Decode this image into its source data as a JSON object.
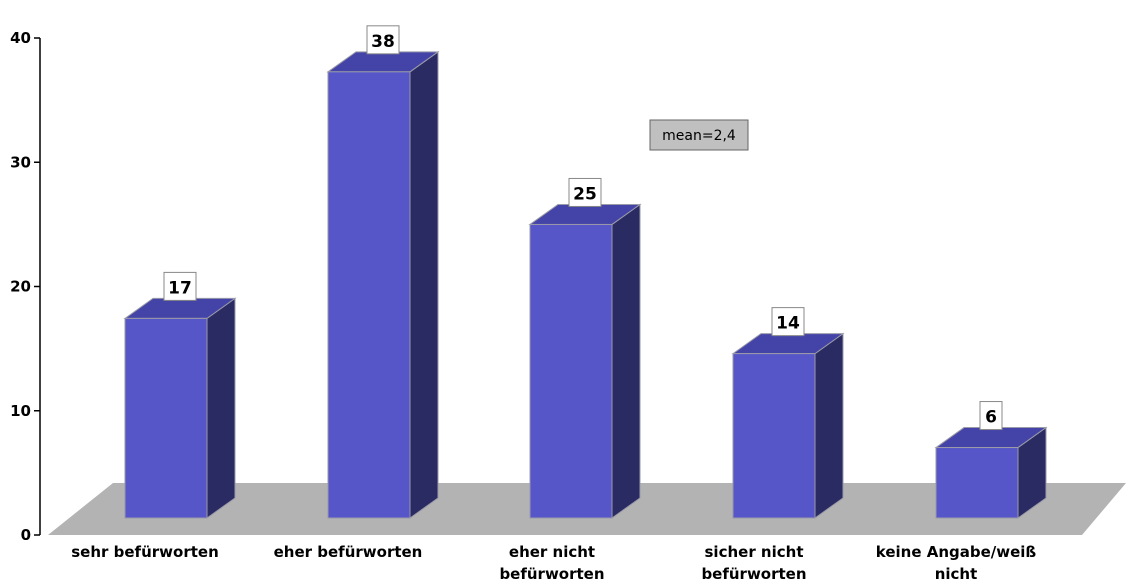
{
  "chart_data": {
    "type": "bar",
    "categories": [
      [
        "sehr befürworten"
      ],
      [
        "eher befürworten"
      ],
      [
        "eher nicht",
        "befürworten"
      ],
      [
        "sicher nicht",
        "befürworten"
      ],
      [
        "keine Angabe/weiß",
        "nicht"
      ]
    ],
    "values": [
      17,
      38,
      25,
      14,
      6
    ],
    "data_labels": [
      "17",
      "38",
      "25",
      "14",
      "6"
    ],
    "ylim": [
      0,
      40
    ],
    "yticks": [
      0,
      10,
      20,
      30,
      40
    ],
    "annotation": "mean=2,4",
    "grid": false,
    "legend": "none",
    "three_d": true
  },
  "colors": {
    "bar_front": "#5656c8",
    "bar_side": "#2b2b63",
    "bar_top": "#4444a8",
    "floor": "#b3b3b3",
    "annotation_bg": "#c0c0c0"
  }
}
